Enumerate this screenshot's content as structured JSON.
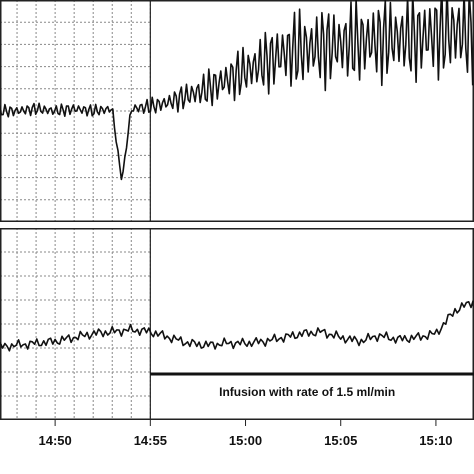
{
  "chart_data": {
    "type": "line",
    "x_unit": "clock time (hh:mm)",
    "x_ticks": [
      "14:50",
      "14:55",
      "15:00",
      "15:05",
      "15:10"
    ],
    "xlim": [
      "14:47",
      "15:12"
    ],
    "grid": "dotted vertical and horizontal, before 14:55 only",
    "panels": [
      {
        "name": "",
        "ylim": [
          0,
          10
        ],
        "series": {
          "x": [
            "14:47",
            "14:48",
            "14:49",
            "14:50",
            "14:51",
            "14:52",
            "14:53",
            "14:53.5",
            "14:54",
            "14:55",
            "14:56",
            "14:57",
            "14:58",
            "14:59",
            "15:00",
            "15:01",
            "15:02",
            "15:03",
            "15:04",
            "15:05",
            "15:06",
            "15:07",
            "15:08",
            "15:09",
            "15:10",
            "15:11",
            "15:12"
          ],
          "y": [
            5.0,
            5.0,
            5.1,
            5.0,
            5.1,
            5.0,
            5.1,
            1.8,
            5.1,
            5.2,
            5.4,
            5.7,
            6.0,
            6.4,
            6.8,
            7.2,
            7.6,
            7.8,
            7.9,
            8.0,
            8.1,
            8.2,
            8.3,
            8.3,
            8.5,
            8.6,
            8.4
          ],
          "oscillation_amplitude": [
            0.3,
            0.3,
            0.3,
            0.3,
            0.3,
            0.3,
            0.3,
            0,
            0.3,
            0.4,
            0.5,
            0.7,
            0.9,
            1.1,
            1.3,
            1.5,
            1.8,
            2.0,
            2.0,
            2.0,
            2.1,
            2.1,
            2.1,
            2.2,
            2.3,
            2.4,
            2.3
          ]
        }
      },
      {
        "name": "",
        "ylim": [
          0,
          10
        ],
        "series": {
          "x": [
            "14:47",
            "14:48",
            "14:49",
            "14:50",
            "14:51",
            "14:52",
            "14:53",
            "14:54",
            "14:55",
            "14:56",
            "14:57",
            "14:58",
            "14:59",
            "15:00",
            "15:01",
            "15:02",
            "15:03",
            "15:04",
            "15:05",
            "15:06",
            "15:07",
            "15:08",
            "15:09",
            "15:10",
            "15:11",
            "15:12"
          ],
          "y": [
            3.8,
            3.9,
            4.0,
            4.1,
            4.3,
            4.5,
            4.6,
            4.7,
            4.6,
            4.3,
            4.0,
            3.9,
            4.0,
            4.0,
            4.1,
            4.3,
            4.5,
            4.6,
            4.3,
            4.1,
            4.4,
            4.2,
            4.3,
            4.5,
            5.7,
            6.2
          ]
        }
      }
    ],
    "annotation": {
      "text": "Infusion with rate of 1.5 ml/min",
      "start": "14:55",
      "end": "15:12"
    }
  }
}
